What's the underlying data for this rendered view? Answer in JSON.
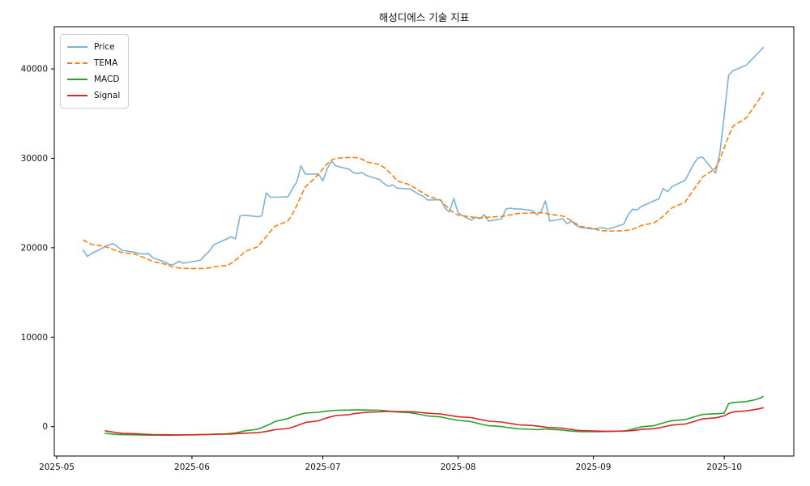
{
  "figure": {
    "title": "해성디에스 기술 지표",
    "background": "#ffffff"
  },
  "legend": {
    "position": "upper-left",
    "items": [
      {
        "label": "Price",
        "color": "#7fb2d7",
        "style": "solid"
      },
      {
        "label": "TEMA",
        "color": "#ff7f0e",
        "style": "dashed"
      },
      {
        "label": "MACD",
        "color": "#2ca02c",
        "style": "solid"
      },
      {
        "label": "Signal",
        "color": "#d62728",
        "style": "solid"
      }
    ]
  },
  "axes": {
    "x_ticks": [
      {
        "label": "2025-05",
        "date": "2025-05-01"
      },
      {
        "label": "2025-06",
        "date": "2025-06-01"
      },
      {
        "label": "2025-07",
        "date": "2025-07-01"
      },
      {
        "label": "2025-08",
        "date": "2025-08-01"
      },
      {
        "label": "2025-09",
        "date": "2025-09-01"
      },
      {
        "label": "2025-10",
        "date": "2025-10-01"
      }
    ],
    "y_ticks": [
      {
        "label": "0",
        "value": 0
      },
      {
        "label": "10000",
        "value": 10000
      },
      {
        "label": "20000",
        "value": 20000
      },
      {
        "label": "30000",
        "value": 30000
      },
      {
        "label": "40000",
        "value": 40000
      }
    ]
  },
  "chart_data": {
    "type": "line",
    "title": "해성디에스 기술 지표",
    "xlabel": "",
    "ylabel": "",
    "grid": false,
    "legend_position": "upper left",
    "ylim": [
      -3300,
      44700
    ],
    "x": [
      "2025-05-07",
      "2025-05-08",
      "2025-05-09",
      "2025-05-12",
      "2025-05-13",
      "2025-05-14",
      "2025-05-15",
      "2025-05-16",
      "2025-05-19",
      "2025-05-20",
      "2025-05-21",
      "2025-05-22",
      "2025-05-23",
      "2025-05-26",
      "2025-05-27",
      "2025-05-28",
      "2025-05-29",
      "2025-05-30",
      "2025-06-02",
      "2025-06-03",
      "2025-06-04",
      "2025-06-05",
      "2025-06-06",
      "2025-06-09",
      "2025-06-10",
      "2025-06-11",
      "2025-06-12",
      "2025-06-13",
      "2025-06-16",
      "2025-06-17",
      "2025-06-18",
      "2025-06-19",
      "2025-06-20",
      "2025-06-23",
      "2025-06-24",
      "2025-06-25",
      "2025-06-26",
      "2025-06-27",
      "2025-06-30",
      "2025-07-01",
      "2025-07-02",
      "2025-07-03",
      "2025-07-04",
      "2025-07-07",
      "2025-07-08",
      "2025-07-09",
      "2025-07-10",
      "2025-07-11",
      "2025-07-14",
      "2025-07-15",
      "2025-07-16",
      "2025-07-17",
      "2025-07-18",
      "2025-07-21",
      "2025-07-22",
      "2025-07-23",
      "2025-07-24",
      "2025-07-25",
      "2025-07-28",
      "2025-07-29",
      "2025-07-30",
      "2025-07-31",
      "2025-08-01",
      "2025-08-04",
      "2025-08-05",
      "2025-08-06",
      "2025-08-07",
      "2025-08-08",
      "2025-08-11",
      "2025-08-12",
      "2025-08-13",
      "2025-08-14",
      "2025-08-15",
      "2025-08-18",
      "2025-08-19",
      "2025-08-20",
      "2025-08-21",
      "2025-08-22",
      "2025-08-25",
      "2025-08-26",
      "2025-08-27",
      "2025-08-28",
      "2025-08-29",
      "2025-09-01",
      "2025-09-02",
      "2025-09-03",
      "2025-09-04",
      "2025-09-05",
      "2025-09-08",
      "2025-09-09",
      "2025-09-10",
      "2025-09-11",
      "2025-09-12",
      "2025-09-15",
      "2025-09-16",
      "2025-09-17",
      "2025-09-18",
      "2025-09-19",
      "2025-09-22",
      "2025-09-23",
      "2025-09-24",
      "2025-09-25",
      "2025-09-26",
      "2025-09-29",
      "2025-09-30",
      "2025-10-01",
      "2025-10-02",
      "2025-10-03",
      "2025-10-06",
      "2025-10-07",
      "2025-10-08",
      "2025-10-09",
      "2025-10-10"
    ],
    "series": [
      {
        "name": "Price",
        "color": "#7fb2d7",
        "style": "solid",
        "values": [
          19800,
          19030,
          19360,
          20080,
          20350,
          20450,
          20080,
          19720,
          19480,
          19360,
          19300,
          19360,
          18900,
          18360,
          18090,
          18180,
          18480,
          18270,
          18520,
          18630,
          19180,
          19630,
          20330,
          20990,
          21240,
          20990,
          23560,
          23650,
          23470,
          23560,
          26130,
          25670,
          25650,
          25700,
          26590,
          27340,
          29150,
          28240,
          28240,
          27480,
          28840,
          29690,
          29150,
          28780,
          28390,
          28300,
          28390,
          28080,
          27630,
          27180,
          26880,
          27030,
          26660,
          26570,
          26270,
          25970,
          25760,
          25340,
          25370,
          24430,
          24000,
          25520,
          23890,
          23070,
          23430,
          23250,
          23700,
          22980,
          23250,
          24340,
          24430,
          24340,
          24340,
          24160,
          23700,
          24000,
          25250,
          22980,
          23250,
          22700,
          22980,
          22530,
          22260,
          22100,
          22170,
          22260,
          22100,
          22170,
          22650,
          23710,
          24320,
          24230,
          24620,
          25280,
          25460,
          26640,
          26270,
          26820,
          27540,
          28450,
          29360,
          30050,
          30140,
          28350,
          30600,
          34800,
          39270,
          39800,
          40400,
          40900,
          41400,
          41900,
          42440
        ]
      },
      {
        "name": "TEMA",
        "color": "#ff7f0e",
        "style": "dashed",
        "values": [
          20900,
          20600,
          20380,
          20150,
          19980,
          19800,
          19630,
          19460,
          19280,
          19090,
          18900,
          18700,
          18450,
          18150,
          17950,
          17820,
          17740,
          17700,
          17680,
          17670,
          17690,
          17750,
          17860,
          18020,
          18270,
          18620,
          19030,
          19550,
          20100,
          20690,
          21250,
          21850,
          22400,
          23000,
          23750,
          24700,
          25800,
          26800,
          28200,
          28840,
          29400,
          29800,
          30000,
          30100,
          30100,
          30050,
          29900,
          29600,
          29300,
          28990,
          28540,
          28080,
          27480,
          27030,
          26720,
          26400,
          26130,
          25800,
          25300,
          24800,
          24300,
          23900,
          23650,
          23450,
          23350,
          23330,
          23360,
          23420,
          23500,
          23580,
          23680,
          23780,
          23850,
          23900,
          23920,
          23900,
          23850,
          23750,
          23550,
          23300,
          23000,
          22700,
          22400,
          22150,
          22000,
          21920,
          21880,
          21870,
          21900,
          21970,
          22080,
          22250,
          22500,
          22800,
          23150,
          23550,
          24000,
          24450,
          25100,
          25800,
          26500,
          27200,
          27900,
          28900,
          29900,
          31200,
          32500,
          33600,
          34500,
          35200,
          35900,
          36600,
          37400
        ]
      },
      {
        "name": "MACD",
        "color": "#2ca02c",
        "style": "solid",
        "values": [
          null,
          null,
          null,
          -750,
          -800,
          -850,
          -880,
          -900,
          -915,
          -930,
          -940,
          -950,
          -955,
          -960,
          -960,
          -955,
          -945,
          -930,
          -915,
          -900,
          -885,
          -865,
          -840,
          -805,
          -760,
          -700,
          -600,
          -470,
          -300,
          -120,
          100,
          310,
          560,
          910,
          1100,
          1270,
          1400,
          1510,
          1600,
          1680,
          1730,
          1780,
          1820,
          1850,
          1870,
          1875,
          1870,
          1855,
          1830,
          1795,
          1750,
          1695,
          1630,
          1555,
          1475,
          1390,
          1295,
          1195,
          1090,
          980,
          880,
          800,
          700,
          560,
          430,
          310,
          200,
          100,
          10,
          -70,
          -140,
          -200,
          -250,
          -300,
          -340,
          -310,
          -260,
          -310,
          -390,
          -450,
          -500,
          -530,
          -550,
          -560,
          -560,
          -555,
          -545,
          -530,
          -490,
          -400,
          -280,
          -150,
          -20,
          120,
          270,
          420,
          550,
          660,
          780,
          920,
          1070,
          1220,
          1360,
          1440,
          1460,
          1510,
          2570,
          2700,
          2800,
          2900,
          3000,
          3150,
          3380
        ]
      },
      {
        "name": "Signal",
        "color": "#d62728",
        "style": "solid",
        "values": [
          null,
          null,
          null,
          -450,
          -540,
          -620,
          -690,
          -740,
          -790,
          -820,
          -850,
          -870,
          -890,
          -905,
          -915,
          -920,
          -920,
          -915,
          -905,
          -895,
          -885,
          -875,
          -860,
          -845,
          -825,
          -800,
          -770,
          -730,
          -680,
          -620,
          -540,
          -450,
          -340,
          -210,
          -60,
          100,
          280,
          460,
          650,
          830,
          990,
          1120,
          1240,
          1340,
          1430,
          1500,
          1560,
          1610,
          1650,
          1680,
          1695,
          1700,
          1690,
          1670,
          1640,
          1600,
          1550,
          1490,
          1420,
          1340,
          1260,
          1180,
          1100,
          1010,
          910,
          810,
          710,
          610,
          520,
          430,
          350,
          270,
          200,
          130,
          70,
          10,
          -50,
          -110,
          -180,
          -250,
          -320,
          -390,
          -440,
          -480,
          -500,
          -510,
          -515,
          -515,
          -505,
          -480,
          -440,
          -380,
          -310,
          -230,
          -140,
          -40,
          60,
          170,
          290,
          420,
          560,
          710,
          860,
          990,
          1090,
          1210,
          1480,
          1640,
          1760,
          1840,
          1910,
          1990,
          2120
        ]
      }
    ]
  }
}
